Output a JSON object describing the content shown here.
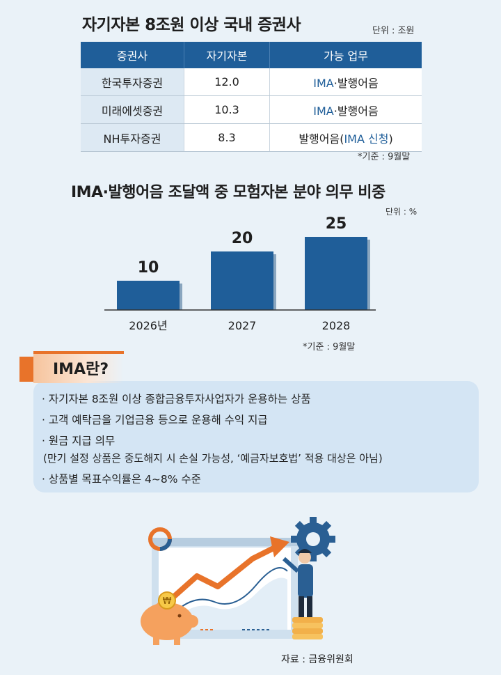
{
  "table": {
    "title": "자기자본 8조원 이상 국내 증권사",
    "unit": "단위 : 조원",
    "headers": [
      "증권사",
      "자기자본",
      "가능 업무"
    ],
    "rows": [
      {
        "company": "한국투자증권",
        "capital": "12.0",
        "business_prefix": "IMA",
        "business_rest": "·발행어음",
        "business_suffix": ""
      },
      {
        "company": "미래에셋증권",
        "capital": "10.3",
        "business_prefix": "IMA",
        "business_rest": "·발행어음",
        "business_suffix": ""
      },
      {
        "company": "NH투자증권",
        "capital": "8.3",
        "business_prefix": "",
        "business_rest": "발행어음(",
        "business_suffix": "IMA 신청",
        "business_close": ")"
      }
    ],
    "note": "*기준 : 9월말"
  },
  "chart_data": {
    "type": "bar",
    "title": "IMA·발행어음 조달액 중 모험자본 분야 의무 비중",
    "unit": "단위 : %",
    "categories": [
      "2026년",
      "2027",
      "2028"
    ],
    "values": [
      10,
      20,
      25
    ],
    "ylim": [
      0,
      25
    ],
    "grid": false,
    "bar_color": "#1f5e99",
    "note": "*기준 : 9월말"
  },
  "ima": {
    "tag": "IMA란?",
    "bullets": [
      "· 자기자본 8조원 이상 종합금융투자사업자가 운용하는 상품",
      "· 고객 예탁금을 기업금융 등으로 운용해 수익 지급",
      "· 원금 지급 의무",
      "(만기 설정 상품은 중도해지 시 손실 가능성, ‘예금자보호법’ 적용 대상은 아님)",
      "· 상품별 목표수익률은 4~8% 수준"
    ]
  },
  "illustration": {
    "icons": [
      "monitor-icon",
      "piggy-bank-icon",
      "gear-icon",
      "coin-icon",
      "rising-arrow-icon",
      "person-icon"
    ],
    "coin_symbol": "₩"
  },
  "source": "자료 : 금융위원회",
  "colors": {
    "primary_blue": "#1f5e99",
    "accent_orange": "#e8732a",
    "background": "#eaf2f8",
    "box_blue": "#d4e5f4"
  }
}
